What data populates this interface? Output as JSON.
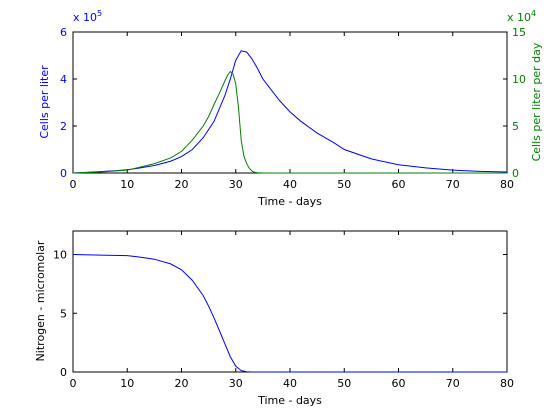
{
  "chart_data": [
    {
      "type": "line",
      "xlabel": "Time - days",
      "ylabel": "Cells per liter",
      "ylabel_right": "Cells per liter per day",
      "xlim": [
        0,
        80
      ],
      "ylim": [
        0,
        6
      ],
      "ylim_right": [
        0,
        15
      ],
      "x_ticks": [
        "0",
        "10",
        "20",
        "30",
        "40",
        "50",
        "60",
        "70",
        "80"
      ],
      "y_ticks": [
        "0",
        "2",
        "4",
        "6"
      ],
      "y_ticks_right": [
        "0",
        "5",
        "10",
        "15"
      ],
      "y_exponent_label": "x 10",
      "y_exponent": "5",
      "y_exponent_label_right": "x 10",
      "y_exponent_right": "4",
      "grid": false,
      "colors": {
        "left": "#0000ff",
        "right": "#008000",
        "axes": "#000000"
      },
      "series": [
        {
          "axis": "left",
          "x": [
            0,
            2,
            5,
            8,
            10,
            12,
            15,
            18,
            20,
            22,
            24,
            26,
            28,
            29,
            30,
            31,
            32,
            33,
            34,
            35,
            36,
            38,
            40,
            42,
            45,
            48,
            50,
            55,
            60,
            65,
            70,
            75,
            80
          ],
          "y": [
            0.0,
            0.02,
            0.06,
            0.1,
            0.14,
            0.2,
            0.32,
            0.5,
            0.7,
            1.0,
            1.5,
            2.2,
            3.3,
            4.0,
            4.8,
            5.2,
            5.15,
            4.85,
            4.45,
            4.0,
            3.7,
            3.1,
            2.6,
            2.2,
            1.7,
            1.3,
            1.0,
            0.6,
            0.35,
            0.22,
            0.12,
            0.07,
            0.04
          ]
        },
        {
          "axis": "right",
          "x": [
            0,
            5,
            10,
            15,
            18,
            20,
            22,
            24,
            25,
            26,
            27,
            28,
            28.5,
            29,
            29.5,
            30,
            30.5,
            31,
            31.5,
            32,
            32.5,
            33,
            33.5,
            34,
            35,
            40,
            50,
            60,
            70,
            80
          ],
          "y": [
            0.0,
            0.1,
            0.3,
            1.0,
            1.6,
            2.3,
            3.5,
            5.0,
            6.0,
            7.3,
            8.5,
            9.8,
            10.4,
            10.8,
            10.5,
            9.5,
            7.0,
            3.5,
            1.8,
            1.0,
            0.5,
            0.2,
            0.08,
            0.03,
            0.0,
            0.0,
            0.0,
            0.0,
            0.0,
            0.0
          ]
        }
      ]
    },
    {
      "type": "line",
      "xlabel": "Time - days",
      "ylabel": "Nitrogen - micromolar",
      "xlim": [
        0,
        80
      ],
      "ylim": [
        0,
        12
      ],
      "x_ticks": [
        "0",
        "10",
        "20",
        "30",
        "40",
        "50",
        "60",
        "70",
        "80"
      ],
      "y_ticks": [
        "0",
        "5",
        "10"
      ],
      "grid": false,
      "colors": {
        "line": "#0000ff",
        "axes": "#000000"
      },
      "series": [
        {
          "x": [
            0,
            5,
            10,
            12,
            15,
            18,
            20,
            22,
            24,
            25,
            26,
            27,
            28,
            29,
            30,
            31,
            32,
            33,
            35,
            40,
            50,
            60,
            70,
            80
          ],
          "y": [
            10.0,
            9.95,
            9.9,
            9.8,
            9.6,
            9.2,
            8.7,
            7.8,
            6.5,
            5.6,
            4.6,
            3.5,
            2.4,
            1.3,
            0.5,
            0.12,
            0.02,
            0.0,
            0.0,
            0.0,
            0.0,
            0.0,
            0.0,
            0.0
          ]
        }
      ]
    }
  ]
}
